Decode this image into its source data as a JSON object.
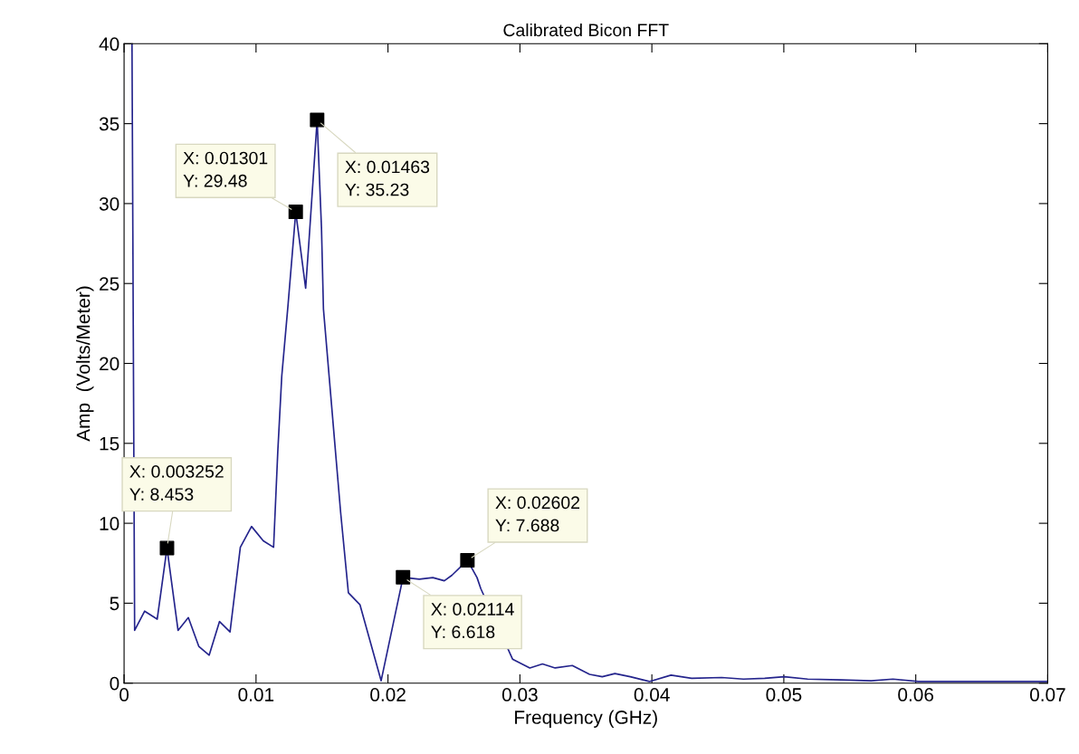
{
  "chart_data": {
    "type": "line",
    "title": "Calibrated Bicon FFT",
    "xlabel": "Frequency (GHz)",
    "ylabel": "Amp  (Volts/Meter)",
    "xlim": [
      0,
      0.07
    ],
    "ylim": [
      0,
      40
    ],
    "xticks": [
      0,
      0.01,
      0.02,
      0.03,
      0.04,
      0.05,
      0.06,
      0.07
    ],
    "yticks": [
      0,
      5,
      10,
      15,
      20,
      25,
      30,
      35,
      40
    ],
    "grid": false,
    "legend": false,
    "series": [
      {
        "color": "#24248c",
        "marker": "none",
        "line_style": "solid",
        "x": [
          0.0006,
          0.0007,
          0.0008,
          0.00156,
          0.00251,
          0.003252,
          0.00409,
          0.00487,
          0.00566,
          0.00645,
          0.00723,
          0.00803,
          0.00881,
          0.00966,
          0.01055,
          0.01133,
          0.01165,
          0.01195,
          0.01242,
          0.01301,
          0.01376,
          0.014,
          0.01463,
          0.01496,
          0.01511,
          0.01555,
          0.01599,
          0.01641,
          0.017,
          0.01788,
          0.01948,
          0.02114,
          0.02237,
          0.0234,
          0.02427,
          0.02485,
          0.02602,
          0.02675,
          0.02704,
          0.02944,
          0.03075,
          0.03171,
          0.03267,
          0.03397,
          0.03528,
          0.03624,
          0.0372,
          0.03836,
          0.03981,
          0.04145,
          0.04303,
          0.04529,
          0.04694,
          0.04855,
          0.05003,
          0.05181,
          0.05435,
          0.05662,
          0.05827,
          0.06019,
          0.06472,
          0.06897,
          0.07
        ],
        "values": [
          40,
          21.5,
          3.3,
          4.5,
          4.0,
          8.453,
          3.3,
          4.1,
          2.3,
          1.75,
          3.85,
          3.2,
          8.5,
          9.8,
          8.9,
          8.5,
          14.5,
          19.2,
          23.6,
          29.48,
          24.7,
          27.5,
          35.23,
          28.5,
          23.4,
          19.1,
          14.8,
          10.7,
          5.65,
          4.9,
          0.15,
          6.618,
          6.5,
          6.6,
          6.4,
          6.75,
          7.688,
          6.6,
          5.9,
          1.5,
          0.95,
          1.2,
          0.95,
          1.1,
          0.55,
          0.4,
          0.6,
          0.4,
          0.1,
          0.5,
          0.3,
          0.35,
          0.25,
          0.3,
          0.4,
          0.25,
          0.2,
          0.15,
          0.25,
          0.1,
          0.1,
          0.1,
          0.1
        ]
      },
      {
        "type": "scatter",
        "color": "#000000",
        "marker": "square",
        "x": [
          0.003252,
          0.01301,
          0.01463,
          0.02114,
          0.02602
        ],
        "values": [
          8.453,
          29.48,
          35.23,
          6.618,
          7.688
        ]
      }
    ],
    "annotations": [
      {
        "text": "X: 0.003252\nY: 8.453",
        "x": 0.003252,
        "y": 8.453
      },
      {
        "text": "X: 0.01301\nY: 29.48",
        "x": 0.01301,
        "y": 29.48
      },
      {
        "text": "X: 0.01463\nY: 35.23",
        "x": 0.01463,
        "y": 35.23
      },
      {
        "text": "X: 0.02114\nY: 6.618",
        "x": 0.02114,
        "y": 6.618
      },
      {
        "text": "X: 0.02602\nY: 7.688",
        "x": 0.02602,
        "y": 7.688
      }
    ]
  }
}
